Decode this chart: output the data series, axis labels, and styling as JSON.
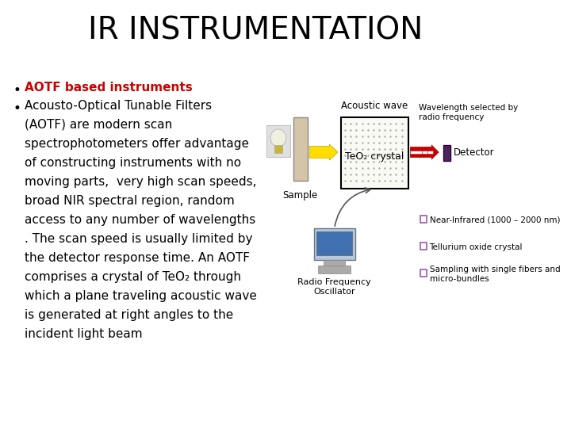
{
  "title": "IR INSTRUMENTATION",
  "title_fontsize": 28,
  "title_color": "#000000",
  "bg_color": "#ffffff",
  "bullet1_text": "AOTF based instruments",
  "bullet1_color": "#cc0000",
  "bullet2_lines": [
    "Acousto-Optical Tunable Filters",
    "(AOTF) are modern scan",
    "spectrophotometers offer advantage",
    "of constructing instruments with no",
    "moving parts,  very high scan speeds,",
    "broad NIR spectral region, random",
    "access to any number of wavelengths",
    ". The scan speed is usually limited by",
    "the detector response time. An AOTF",
    "comprises a crystal of TeO₂ through",
    "which a plane traveling acoustic wave",
    "is generated at right angles to the",
    "incident light beam"
  ],
  "bullet2_color": "#000000",
  "bullet_fontsize": 11,
  "diagram_labels": {
    "acoustic_wave": "Acoustic wave",
    "teo2": "TeO₂ crystal",
    "wavelength": "Wavelength selected by\nradio frequency",
    "detector": "Detector",
    "sample": "Sample",
    "rf_oscillator": "Radio Frequency\nOscillator",
    "near_ir": "Near-Infrared (1000 – 2000 nm)",
    "tellurium": "Tellurium oxide crystal",
    "sampling": "Sampling with single fibers and\nmicro-bundles"
  },
  "diagram_colors": {
    "sample_rect": "#d4c5a9",
    "crystal_rect_fill": "#fafaf5",
    "crystal_rect_border": "#000000",
    "yellow_arrow": "#ffdd00",
    "red_arrow": "#cc0000",
    "detector_rect": "#4a235a",
    "checkbox_color": "#9b59b6",
    "white": "#ffffff"
  }
}
